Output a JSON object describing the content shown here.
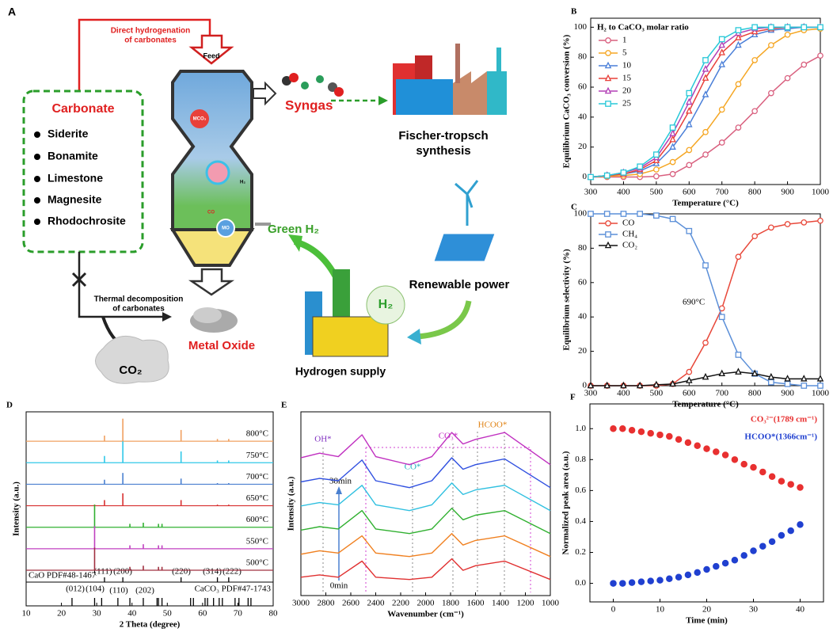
{
  "diagram": {
    "label": "A",
    "feed_note": [
      "Direct hydrogenation",
      "of carbonates"
    ],
    "feed": "Feed",
    "carbonate_title": "Carbonate",
    "carbonate_list": [
      "Siderite",
      "Bonamite",
      "Limestone",
      "Magnesite",
      "Rhodochrosite"
    ],
    "syngas": "Syngas",
    "fischer": [
      "Fischer-tropsch",
      "synthesis"
    ],
    "mco3": "MCO₃",
    "h2_small": "H₂",
    "co": "CO",
    "mo": "MO",
    "green_h2": "Green H₂",
    "renewable": "Renewable power",
    "h2_tank": "H₂",
    "hydrogen_supply": "Hydrogen supply",
    "thermal_note": [
      "Thermal decomposition",
      "of carbonates"
    ],
    "metal_oxide": "Metal Oxide",
    "co2": "CO₂"
  },
  "chart_data": [
    {
      "type": "line",
      "label": "B",
      "xlabel": "Temperature (°C)",
      "ylabel": "Equilibrium CaCO₃ conversion (%)",
      "legend_title": "H₂ to CaCO₃ molar ratio",
      "legend": "upper left",
      "xlim": [
        300,
        1000
      ],
      "xticks": [
        300,
        400,
        500,
        600,
        700,
        800,
        900,
        1000
      ],
      "ylim": [
        -5,
        106
      ],
      "yticks": [
        0,
        20,
        40,
        60,
        80,
        100
      ],
      "x": [
        300,
        350,
        400,
        450,
        500,
        550,
        600,
        650,
        700,
        750,
        800,
        850,
        900,
        950,
        1000
      ],
      "series": [
        {
          "name": "1",
          "color": "#d9607f",
          "marker": "circle",
          "values": [
            0,
            0,
            0,
            0,
            0.5,
            2,
            8,
            15,
            23,
            33,
            44,
            56,
            66,
            75,
            81
          ]
        },
        {
          "name": "5",
          "color": "#f5a623",
          "marker": "circle",
          "values": [
            0,
            0.5,
            1,
            2,
            5,
            10,
            18,
            30,
            45,
            62,
            78,
            88,
            95,
            98,
            99
          ]
        },
        {
          "name": "10",
          "color": "#4a7fd8",
          "marker": "triangle",
          "values": [
            0,
            1,
            2,
            4,
            9,
            20,
            35,
            55,
            75,
            88,
            95,
            98,
            99,
            100,
            100
          ]
        },
        {
          "name": "15",
          "color": "#e8403a",
          "marker": "triangle",
          "values": [
            0,
            1,
            2,
            5,
            11,
            25,
            44,
            66,
            83,
            93,
            97,
            99,
            100,
            100,
            100
          ]
        },
        {
          "name": "20",
          "color": "#b23fb5",
          "marker": "triangle",
          "values": [
            0,
            1,
            3,
            6,
            13,
            29,
            50,
            72,
            88,
            96,
            99,
            100,
            100,
            100,
            100
          ]
        },
        {
          "name": "25",
          "color": "#28c8d8",
          "marker": "square",
          "values": [
            0,
            1,
            3,
            7,
            15,
            33,
            56,
            78,
            92,
            98,
            100,
            100,
            100,
            100,
            100
          ]
        }
      ]
    },
    {
      "type": "line",
      "label": "C",
      "xlabel": "Temperature (°C)",
      "ylabel": "Equilibrium selectivity  (%)",
      "legend": "upper left",
      "annotation": "690°C",
      "xlim": [
        300,
        1000
      ],
      "xticks": [
        300,
        400,
        500,
        600,
        700,
        800,
        900,
        1000
      ],
      "ylim": [
        0,
        100
      ],
      "yticks": [
        0,
        20,
        40,
        60,
        80,
        100
      ],
      "x": [
        300,
        350,
        400,
        450,
        500,
        550,
        600,
        650,
        700,
        750,
        800,
        850,
        900,
        950,
        1000
      ],
      "series": [
        {
          "name": "CO",
          "color": "#e8483a",
          "marker": "circle",
          "values": [
            0,
            0,
            0,
            0,
            0,
            1,
            8,
            25,
            45,
            75,
            87,
            92,
            94,
            95,
            96
          ]
        },
        {
          "name": "CH₄",
          "color": "#5b8fd8",
          "marker": "square",
          "values": [
            100,
            100,
            100,
            100,
            99,
            97,
            90,
            70,
            40,
            18,
            7,
            2,
            1,
            0,
            0
          ]
        },
        {
          "name": "CO₂",
          "color": "#111111",
          "marker": "triangle",
          "values": [
            0,
            0,
            0,
            0,
            0.5,
            1,
            3,
            5,
            7,
            8,
            7,
            5,
            4,
            4,
            4
          ]
        }
      ]
    },
    {
      "type": "stick",
      "label": "D",
      "xlabel": "2 Theta (degree)",
      "ylabel": "Intensity (a.u.)",
      "xlim": [
        10,
        80
      ],
      "xticks": [
        10,
        20,
        30,
        40,
        50,
        60,
        70,
        80
      ],
      "annotations": [
        "CaO PDF#48-1467",
        "(111)",
        "(200)",
        "(220)",
        "(314)",
        "(222)",
        "(012)",
        "(104)",
        "(110)",
        "(202)",
        "CaCO₃ PDF#47-1743"
      ],
      "x": [
        29.4,
        32.2,
        37.4,
        39.4,
        43.2,
        47.5,
        48.5,
        53.9,
        64.2,
        67.4
      ],
      "series": [
        {
          "name": "800°C",
          "color": "#f0a060",
          "values": [
            0,
            0.25,
            1.0,
            0,
            0,
            0,
            0,
            0.5,
            0.1,
            0.1
          ]
        },
        {
          "name": "750°C",
          "color": "#30c8e8",
          "values": [
            0,
            0.3,
            0.95,
            0,
            0,
            0,
            0,
            0.5,
            0.1,
            0.1
          ]
        },
        {
          "name": "700°C",
          "color": "#4a80d0",
          "values": [
            0,
            0.2,
            0.5,
            0,
            0,
            0,
            0,
            0.25,
            0.05,
            0.05
          ]
        },
        {
          "name": "650°C",
          "color": "#d83030",
          "values": [
            0.05,
            0.25,
            0.55,
            0,
            0,
            0,
            0,
            0.25,
            0.05,
            0.05
          ]
        },
        {
          "name": "600°C",
          "color": "#30b030",
          "values": [
            1.0,
            0,
            0,
            0.15,
            0.2,
            0.15,
            0.15,
            0,
            0,
            0
          ]
        },
        {
          "name": "550°C",
          "color": "#c040c0",
          "values": [
            1.0,
            0,
            0,
            0.15,
            0.2,
            0.15,
            0.15,
            0,
            0,
            0
          ]
        },
        {
          "name": "500°C",
          "color": "#a03040",
          "values": [
            1.0,
            0,
            0,
            0.15,
            0.2,
            0.15,
            0.15,
            0,
            0,
            0
          ]
        }
      ],
      "ref_cao": [
        32.2,
        37.4,
        53.9,
        64.2,
        67.4
      ],
      "ref_caco3": [
        23.0,
        29.4,
        31.4,
        36.0,
        39.4,
        43.2,
        47.1,
        47.5,
        48.5,
        56.6,
        57.4,
        60.7,
        61.4,
        63.1,
        64.7,
        65.6,
        69.2,
        70.3,
        72.9,
        73.7
      ]
    },
    {
      "type": "spectra",
      "label": "E",
      "xlabel": "Wavenumber (cm⁻¹)",
      "ylabel": "Intensity (a.u.)",
      "annotations": [
        "OH*",
        "CO*",
        "CO₃*",
        "HCOO*",
        "38min",
        "0min"
      ],
      "xlim": [
        3000,
        1000
      ],
      "xticks": [
        3000,
        2800,
        2600,
        2400,
        2200,
        2000,
        1800,
        1600,
        1400,
        1200,
        1000
      ],
      "ylim": [
        -0.5,
        7.5
      ],
      "x": [
        3000,
        2850,
        2700,
        2510,
        2400,
        2130,
        1950,
        1790,
        1700,
        1600,
        1366,
        1000
      ],
      "series": [
        {
          "color": "#e03030",
          "values": [
            0.3,
            0.4,
            0.3,
            1.0,
            0.3,
            0.2,
            0.3,
            1.1,
            0.6,
            0.8,
            1.0,
            0.2
          ]
        },
        {
          "color": "#f08020",
          "values": [
            1.3,
            1.45,
            1.35,
            2.1,
            1.35,
            1.2,
            1.35,
            2.2,
            1.7,
            1.9,
            2.1,
            1.2
          ]
        },
        {
          "color": "#30b030",
          "values": [
            2.35,
            2.5,
            2.4,
            3.2,
            2.4,
            2.2,
            2.4,
            3.3,
            2.8,
            3.0,
            3.2,
            2.2
          ]
        },
        {
          "color": "#30c0e0",
          "values": [
            3.4,
            3.55,
            3.45,
            4.3,
            3.45,
            3.2,
            3.45,
            4.4,
            3.9,
            4.1,
            4.3,
            3.2
          ]
        },
        {
          "color": "#3050e0",
          "values": [
            4.45,
            4.6,
            4.5,
            5.4,
            4.5,
            4.2,
            4.5,
            5.5,
            5.0,
            5.2,
            5.45,
            4.2
          ]
        },
        {
          "color": "#c030c0",
          "values": [
            5.5,
            5.7,
            5.55,
            6.5,
            5.55,
            5.2,
            5.55,
            6.6,
            6.1,
            6.3,
            6.6,
            5.2
          ]
        }
      ]
    },
    {
      "type": "scatter",
      "label": "F",
      "xlabel": "Time (min)",
      "ylabel": "Normalized peak area (a.u.)",
      "legend": "upper right",
      "xlim": [
        -5,
        45
      ],
      "xticks": [
        0,
        10,
        20,
        30,
        40
      ],
      "ylim": [
        -0.12,
        1.16
      ],
      "yticks": [
        {
          "value": 0,
          "label": "0.0"
        },
        {
          "value": 0.2,
          "label": "0.2"
        },
        {
          "value": 0.4,
          "label": "0.4"
        },
        {
          "value": 0.6,
          "label": "0.6"
        },
        {
          "value": 0.8,
          "label": "0.8"
        },
        {
          "value": 1,
          "label": "1.0"
        }
      ],
      "x": [
        0,
        2,
        4,
        6,
        8,
        10,
        12,
        14,
        16,
        18,
        20,
        22,
        24,
        26,
        28,
        30,
        32,
        34,
        36,
        38,
        40
      ],
      "series": [
        {
          "name": "CO₃²⁻(1789 cm⁻¹)",
          "color": "#e83030",
          "values": [
            1.0,
            1.0,
            0.99,
            0.98,
            0.97,
            0.96,
            0.95,
            0.93,
            0.91,
            0.89,
            0.87,
            0.85,
            0.83,
            0.8,
            0.77,
            0.75,
            0.72,
            0.69,
            0.66,
            0.64,
            0.62
          ]
        },
        {
          "name": "HCOO*(1366cm⁻¹)",
          "color": "#2040d0",
          "values": [
            0,
            0,
            0.005,
            0.01,
            0.015,
            0.02,
            0.03,
            0.04,
            0.055,
            0.07,
            0.09,
            0.11,
            0.13,
            0.15,
            0.18,
            0.21,
            0.24,
            0.27,
            0.31,
            0.34,
            0.38
          ]
        }
      ]
    }
  ]
}
